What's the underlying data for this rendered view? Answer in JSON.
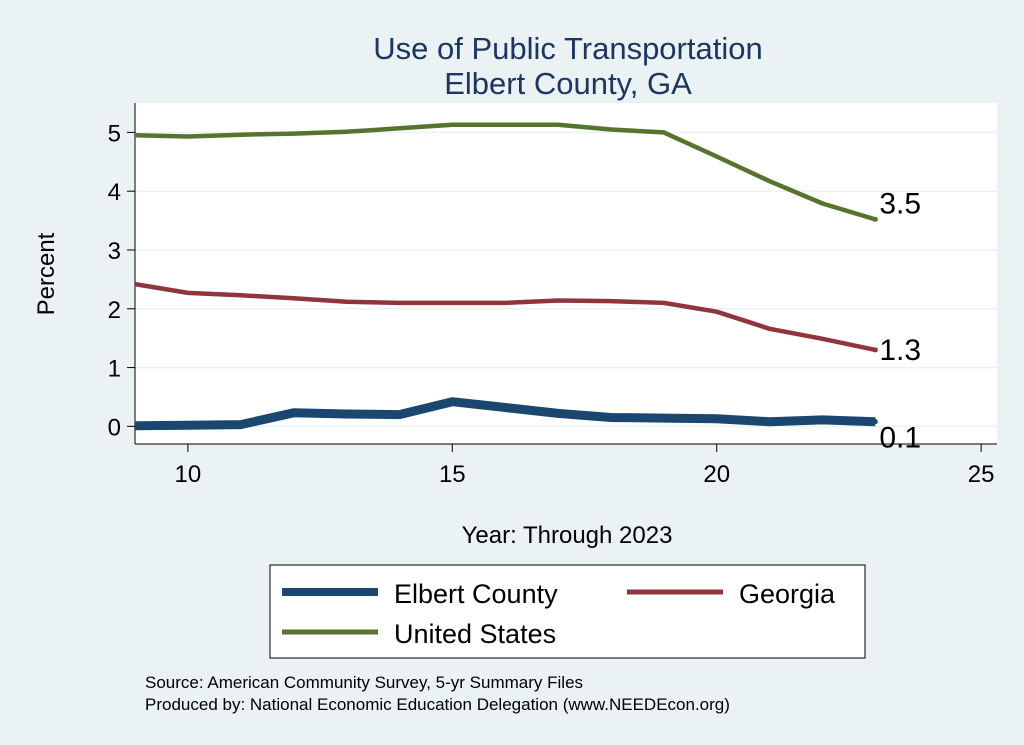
{
  "chart_data": {
    "type": "line",
    "title": [
      "Use of Public Transportation",
      "Elbert County, GA"
    ],
    "xlabel": "Year: Through 2023",
    "ylabel": "Percent",
    "xlim": [
      9,
      25.3
    ],
    "ylim": [
      -0.3,
      5.5
    ],
    "xticks": [
      10,
      15,
      20,
      25
    ],
    "yticks": [
      0,
      1,
      2,
      3,
      4,
      5
    ],
    "grid": true,
    "legend_position": "bottom",
    "series": [
      {
        "name": "Elbert County",
        "color": "#1a476f",
        "width": "thick",
        "x": [
          9,
          10,
          11,
          12,
          13,
          14,
          15,
          16,
          17,
          18,
          19,
          20,
          21,
          22,
          23
        ],
        "values": [
          0.01,
          0.02,
          0.03,
          0.23,
          0.21,
          0.2,
          0.42,
          0.32,
          0.22,
          0.15,
          0.14,
          0.13,
          0.08,
          0.11,
          0.08
        ],
        "end_label": "0.1"
      },
      {
        "name": "Georgia",
        "color": "#90353b",
        "width": "medium",
        "x": [
          9,
          10,
          11,
          12,
          13,
          14,
          15,
          16,
          17,
          18,
          19,
          20,
          21,
          22,
          23
        ],
        "values": [
          2.42,
          2.27,
          2.23,
          2.18,
          2.12,
          2.1,
          2.1,
          2.1,
          2.14,
          2.13,
          2.1,
          1.95,
          1.66,
          1.49,
          1.3
        ],
        "end_label": "1.3"
      },
      {
        "name": "United States",
        "color": "#55752f",
        "width": "medium",
        "x": [
          9,
          10,
          11,
          12,
          13,
          14,
          15,
          16,
          17,
          18,
          19,
          20,
          21,
          22,
          23
        ],
        "values": [
          4.95,
          4.93,
          4.96,
          4.98,
          5.01,
          5.07,
          5.13,
          5.13,
          5.13,
          5.05,
          5.0,
          4.59,
          4.17,
          3.79,
          3.52
        ],
        "end_label": "3.5"
      }
    ]
  },
  "footer": {
    "source": "Source: American Community Survey, 5-yr Summary Files",
    "produced": "Produced by: National Economic Education Delegation (www.NEEDEcon.org)"
  }
}
